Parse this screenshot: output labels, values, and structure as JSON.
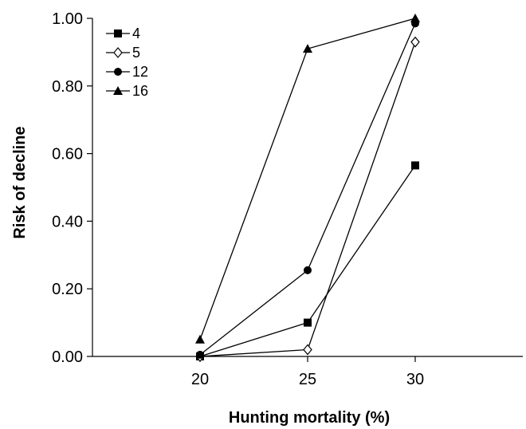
{
  "chart_data": {
    "type": "line",
    "title": "",
    "xlabel": "Hunting mortality (%)",
    "ylabel": "Risk of decline",
    "x": [
      20,
      25,
      30
    ],
    "x_tick_labels": [
      "20",
      "25",
      "30"
    ],
    "xlim": [
      15,
      35
    ],
    "ylim": [
      0,
      1
    ],
    "y_tick_labels": [
      "0.00",
      "0.20",
      "0.40",
      "0.60",
      "0.80",
      "1.00"
    ],
    "y_ticks": [
      0,
      0.2,
      0.4,
      0.6,
      0.8,
      1.0
    ],
    "grid": false,
    "legend_placement": "top-left",
    "series": [
      {
        "name": "4",
        "marker": "square-filled",
        "color": "#000000",
        "values": [
          0.0,
          0.1,
          0.565
        ]
      },
      {
        "name": "5",
        "marker": "diamond-open",
        "color": "#000000",
        "values": [
          0.0,
          0.02,
          0.93
        ]
      },
      {
        "name": "12",
        "marker": "circle-filled",
        "color": "#000000",
        "values": [
          0.005,
          0.255,
          0.985
        ]
      },
      {
        "name": "16",
        "marker": "triangle-filled",
        "color": "#000000",
        "values": [
          0.05,
          0.91,
          1.0
        ]
      }
    ]
  }
}
